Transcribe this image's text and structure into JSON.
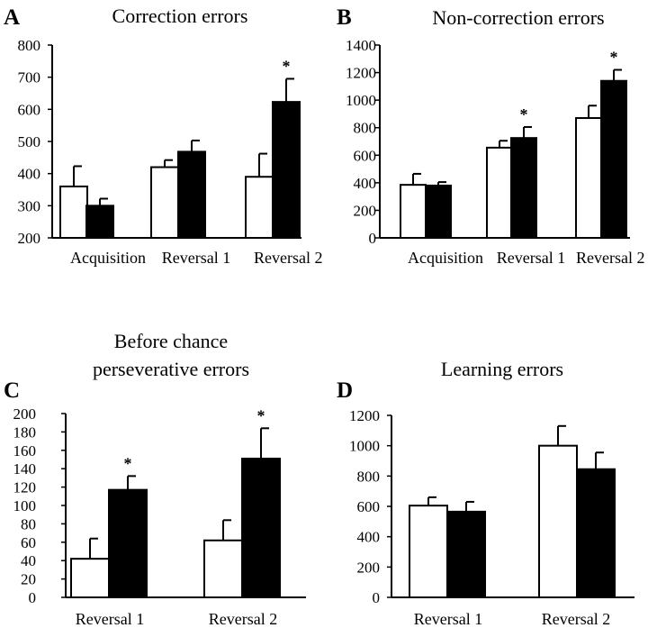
{
  "chart_data": [
    {
      "panel": "A",
      "type": "bar",
      "title_lines": [
        "Correction errors"
      ],
      "categories": [
        "Acquisition",
        "Reversal 1",
        "Reversal 2"
      ],
      "ylim": [
        200,
        800
      ],
      "yticks": [
        200,
        300,
        400,
        500,
        600,
        700,
        800
      ],
      "series": [
        {
          "fill": "#ffffff",
          "values": [
            360,
            420,
            390
          ],
          "errors": [
            63,
            22,
            72
          ]
        },
        {
          "fill": "#000000",
          "values": [
            300,
            468,
            623
          ],
          "errors": [
            22,
            35,
            72
          ]
        }
      ],
      "significance": [
        "",
        "",
        "*"
      ]
    },
    {
      "panel": "B",
      "type": "bar",
      "title_lines": [
        "Non-correction errors"
      ],
      "categories": [
        "Acquisition",
        "Reversal 1",
        "Reversal 2"
      ],
      "ylim": [
        0,
        1400
      ],
      "yticks": [
        0,
        200,
        400,
        600,
        800,
        1000,
        1200,
        1400
      ],
      "series": [
        {
          "fill": "#ffffff",
          "values": [
            385,
            655,
            870
          ],
          "errors": [
            80,
            50,
            90
          ]
        },
        {
          "fill": "#000000",
          "values": [
            380,
            725,
            1140
          ],
          "errors": [
            25,
            80,
            80
          ]
        }
      ],
      "significance": [
        "",
        "*",
        "*"
      ]
    },
    {
      "panel": "C",
      "type": "bar",
      "title_lines": [
        "Before chance",
        "perseverative errors"
      ],
      "categories": [
        "Reversal 1",
        "Reversal 2"
      ],
      "ylim": [
        0,
        200
      ],
      "yticks": [
        0,
        20,
        40,
        60,
        80,
        100,
        120,
        140,
        160,
        180,
        200
      ],
      "series": [
        {
          "fill": "#ffffff",
          "values": [
            42,
            62
          ],
          "errors": [
            22,
            22
          ]
        },
        {
          "fill": "#000000",
          "values": [
            117,
            151
          ],
          "errors": [
            15,
            33
          ]
        }
      ],
      "significance": [
        "*",
        "*"
      ]
    },
    {
      "panel": "D",
      "type": "bar",
      "title_lines": [
        "Learning errors"
      ],
      "categories": [
        "Reversal 1",
        "Reversal 2"
      ],
      "ylim": [
        0,
        1200
      ],
      "yticks": [
        0,
        200,
        400,
        600,
        800,
        1000,
        1200
      ],
      "series": [
        {
          "fill": "#ffffff",
          "values": [
            605,
            1000
          ],
          "errors": [
            55,
            130
          ]
        },
        {
          "fill": "#000000",
          "values": [
            565,
            845
          ],
          "errors": [
            65,
            110
          ]
        }
      ],
      "significance": [
        "",
        ""
      ]
    }
  ]
}
